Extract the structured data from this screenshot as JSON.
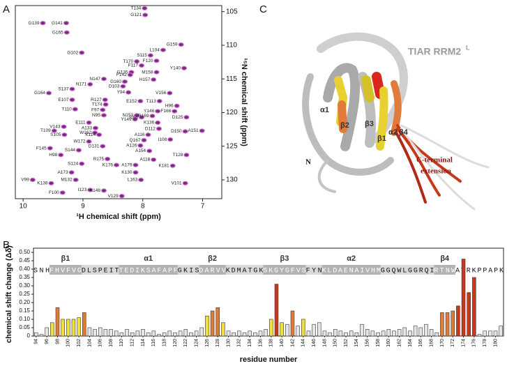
{
  "chart_data": [
    {
      "type": "scatter",
      "panel": "A",
      "xlabel": "¹H chemical shift (ppm)",
      "ylabel": "¹⁵N chemical shift (ppm)",
      "xlim": [
        10.13,
        6.68
      ],
      "ylim": [
        132.8,
        104.1
      ],
      "xticks": [
        10,
        9,
        8,
        7
      ],
      "yticks": [
        105,
        110,
        115,
        120,
        125,
        130
      ],
      "color": "#7a2a7e",
      "point_labels": [
        "G139",
        "G141",
        "T134",
        "G121",
        "G159",
        "G165",
        "G102",
        "T170",
        "S115",
        "L104",
        "F120",
        "F117",
        "Y140",
        "M158",
        "G135",
        "F142",
        "H157",
        "N147",
        "G160",
        "N171",
        "D103",
        "S137",
        "Y94",
        "V156",
        "G164",
        "R127",
        "E152",
        "T113",
        "E107",
        "T174",
        "F97",
        "Y146",
        "F166",
        "H96",
        "T110",
        "N153",
        "D125",
        "N95",
        "Y149",
        "I168",
        "K136",
        "D112",
        "R169",
        "T109",
        "E111",
        "A133",
        "V143",
        "D150",
        "A151",
        "S105",
        "W162",
        "K114",
        "A116",
        "F145",
        "W172",
        "Q167",
        "I108",
        "H98",
        "D131",
        "A126",
        "S144",
        "A154",
        "T128",
        "R175",
        "S124",
        "K176",
        "A179",
        "A118",
        "K181",
        "A173",
        "K130",
        "V99",
        "K138",
        "M132",
        "L163",
        "V101",
        "I123",
        "K148",
        "F100",
        "V129"
      ],
      "x": [
        9.67,
        9.28,
        7.97,
        7.96,
        7.36,
        9.27,
        9.02,
        8.1,
        7.87,
        7.66,
        7.77,
        8.02,
        7.31,
        7.77,
        8.19,
        8.21,
        7.82,
        8.65,
        8.3,
        8.88,
        8.33,
        9.18,
        8.24,
        7.55,
        9.57,
        8.63,
        8.04,
        7.72,
        9.18,
        8.62,
        8.67,
        7.75,
        7.47,
        7.43,
        9.13,
        8.1,
        7.27,
        8.65,
        8.13,
        8.02,
        7.75,
        7.73,
        7.84,
        9.48,
        8.9,
        8.79,
        9.32,
        7.29,
        7.01,
        9.31,
        8.8,
        8.73,
        7.91,
        9.55,
        8.9,
        7.98,
        7.54,
        9.37,
        8.67,
        8.04,
        9.07,
        7.89,
        7.27,
        8.59,
        9.02,
        8.44,
        8.12,
        7.82,
        7.5,
        9.19,
        8.12,
        9.84,
        9.53,
        9.12,
        8.03,
        7.29,
        8.88,
        8.65,
        9.34,
        8.35
      ],
      "values": [
        106.7,
        106.7,
        104.5,
        105.5,
        109.9,
        108.1,
        111.1,
        112.4,
        111.5,
        110.7,
        112.3,
        113.0,
        113.4,
        114.0,
        114.0,
        114.4,
        115.1,
        115.0,
        115.4,
        115.8,
        116.1,
        116.5,
        117.0,
        117.1,
        117.1,
        118.1,
        118.3,
        118.3,
        118.1,
        118.8,
        119.6,
        119.8,
        119.8,
        119.0,
        119.5,
        120.4,
        120.7,
        120.4,
        121.0,
        120.7,
        121.5,
        122.4,
        120.5,
        122.7,
        121.5,
        122.3,
        122.1,
        122.8,
        122.7,
        123.3,
        123.0,
        123.3,
        123.3,
        125.3,
        124.3,
        124.1,
        124.0,
        126.3,
        125.0,
        124.9,
        125.6,
        125.7,
        126.3,
        126.9,
        127.6,
        127.8,
        127.8,
        127.0,
        127.9,
        128.9,
        128.9,
        130.0,
        130.5,
        130.0,
        130.0,
        130.5,
        131.5,
        131.6,
        131.9,
        132.4
      ]
    },
    {
      "type": "bar",
      "panel": "B",
      "xlabel": "residue number",
      "ylabel": "chemical shift change (Δδ)",
      "ylim": [
        0,
        0.5
      ],
      "yticks": [
        0,
        0.05,
        {
          "value": 0.1,
          "label": "0.10"
        },
        0.15,
        {
          "value": 0.2,
          "label": "0.20"
        },
        0.25,
        {
          "value": 0.3,
          "label": "0.30"
        },
        0.35,
        {
          "value": 0.4,
          "label": "0.40"
        },
        0.45,
        {
          "value": 0.5,
          "label": "0.50"
        }
      ],
      "categories": [
        "94",
        null,
        "96",
        null,
        "98",
        null,
        "100",
        null,
        "102",
        null,
        "104",
        null,
        "106",
        null,
        "108",
        null,
        "110",
        null,
        "112",
        null,
        "114",
        null,
        "116",
        null,
        "118",
        null,
        "120",
        null,
        "122",
        null,
        "124",
        null,
        "126",
        null,
        "128",
        null,
        "130",
        null,
        "132",
        null,
        "134",
        null,
        "136",
        null,
        "138",
        null,
        "140",
        null,
        "142",
        null,
        "144",
        null,
        "146",
        null,
        "148",
        null,
        "150",
        null,
        "152",
        null,
        "154",
        null,
        "156",
        null,
        "158",
        null,
        "160",
        null,
        "162",
        null,
        "164",
        null,
        "166",
        null,
        "168",
        null,
        "170",
        null,
        "172",
        null,
        "174",
        null,
        "176",
        null,
        "178",
        null,
        "180",
        null
      ],
      "values": [
        0.02,
        0.01,
        0.05,
        0.08,
        0.17,
        0.1,
        0.1,
        0.1,
        0.11,
        0.14,
        0.05,
        0.04,
        0.05,
        0.04,
        0.04,
        0.03,
        0.02,
        0.04,
        0.02,
        0.03,
        0.04,
        0.02,
        0.03,
        0.01,
        0.02,
        0.03,
        0.02,
        0.03,
        0.04,
        0.02,
        0.03,
        0.05,
        0.12,
        0.15,
        0.17,
        0.08,
        0.03,
        0.02,
        0.03,
        0.02,
        0.03,
        0.02,
        0.03,
        0.04,
        0.1,
        0.31,
        0.08,
        0.07,
        0.15,
        0.06,
        0.1,
        0.03,
        0.07,
        0.08,
        0.03,
        0.02,
        0.04,
        0.03,
        0.02,
        0.03,
        0.02,
        0.07,
        0.04,
        0.03,
        0.02,
        0.03,
        0.04,
        0.03,
        0.04,
        0.05,
        0.03,
        0.06,
        0.05,
        0.07,
        0.04,
        0.02,
        0.14,
        0.14,
        0.15,
        0.18,
        0.46,
        0.26,
        0.35,
        0.01,
        0.03,
        0.03,
        0.03,
        0.06
      ],
      "colors": [
        "#e6e6e6",
        "#e6e6e6",
        "#e6e6e6",
        "#f1df3c",
        "#e07b39",
        "#f1df3c",
        "#f1df3c",
        "#f1df3c",
        "#f1df3c",
        "#e07b39",
        "#e6e6e6",
        "#e6e6e6",
        "#e6e6e6",
        "#e6e6e6",
        "#e6e6e6",
        "#e6e6e6",
        "#e6e6e6",
        "#e6e6e6",
        "#e6e6e6",
        "#e6e6e6",
        "#e6e6e6",
        "#e6e6e6",
        "#e6e6e6",
        "#e6e6e6",
        "#e6e6e6",
        "#e6e6e6",
        "#e6e6e6",
        "#e6e6e6",
        "#e6e6e6",
        "#e6e6e6",
        "#e6e6e6",
        "#e6e6e6",
        "#f1df3c",
        "#e07b39",
        "#e07b39",
        "#f1df3c",
        "#e6e6e6",
        "#e6e6e6",
        "#e6e6e6",
        "#e6e6e6",
        "#e6e6e6",
        "#e6e6e6",
        "#e6e6e6",
        "#e6e6e6",
        "#f1df3c",
        "#c8381b",
        "#f1df3c",
        "#e6e6e6",
        "#e07b39",
        "#e6e6e6",
        "#f1df3c",
        "#e6e6e6",
        "#e6e6e6",
        "#e6e6e6",
        "#e6e6e6",
        "#e6e6e6",
        "#e6e6e6",
        "#e6e6e6",
        "#e6e6e6",
        "#e6e6e6",
        "#e6e6e6",
        "#e6e6e6",
        "#e6e6e6",
        "#e6e6e6",
        "#e6e6e6",
        "#e6e6e6",
        "#e6e6e6",
        "#e6e6e6",
        "#e6e6e6",
        "#e6e6e6",
        "#e6e6e6",
        "#e6e6e6",
        "#e6e6e6",
        "#e6e6e6",
        "#e6e6e6",
        "#e6e6e6",
        "#e07b39",
        "#e07b39",
        "#e07b39",
        "#c8381b",
        "#c8381b",
        "#c8381b",
        "#c8381b",
        "#e6e6e6",
        "#e6e6e6",
        "#e6e6e6",
        "#e6e6e6",
        "#e6e6e6"
      ],
      "sequence": [
        {
          "text": "SNH"
        },
        {
          "text": "FHVFVG",
          "element": "β1"
        },
        {
          "text": "DLSPEIT"
        },
        {
          "text": "TEDIKSAFAPF",
          "element": "α1"
        },
        {
          "text": "GKIS"
        },
        {
          "text": "DARVV",
          "element": "β2"
        },
        {
          "text": "KDMATGK"
        },
        {
          "text": "SKGYGFVS",
          "element": "β3"
        },
        {
          "text": "FYN"
        },
        {
          "text": "KLDAENAIVHM",
          "element": "α2"
        },
        {
          "text": "GGQWLGGRQI"
        },
        {
          "text": "RTNW",
          "element": "β4"
        },
        {
          "text": "ATRKPPAPK"
        }
      ]
    }
  ],
  "structure": {
    "panel": "C",
    "title": "TIAR RRM2",
    "title_superscript": "L",
    "labels": [
      "α1",
      "β2",
      "β3",
      "β1",
      "α2",
      "β4"
    ],
    "n_terminus": "N",
    "annotation": [
      "C-terminal",
      "extension"
    ]
  }
}
